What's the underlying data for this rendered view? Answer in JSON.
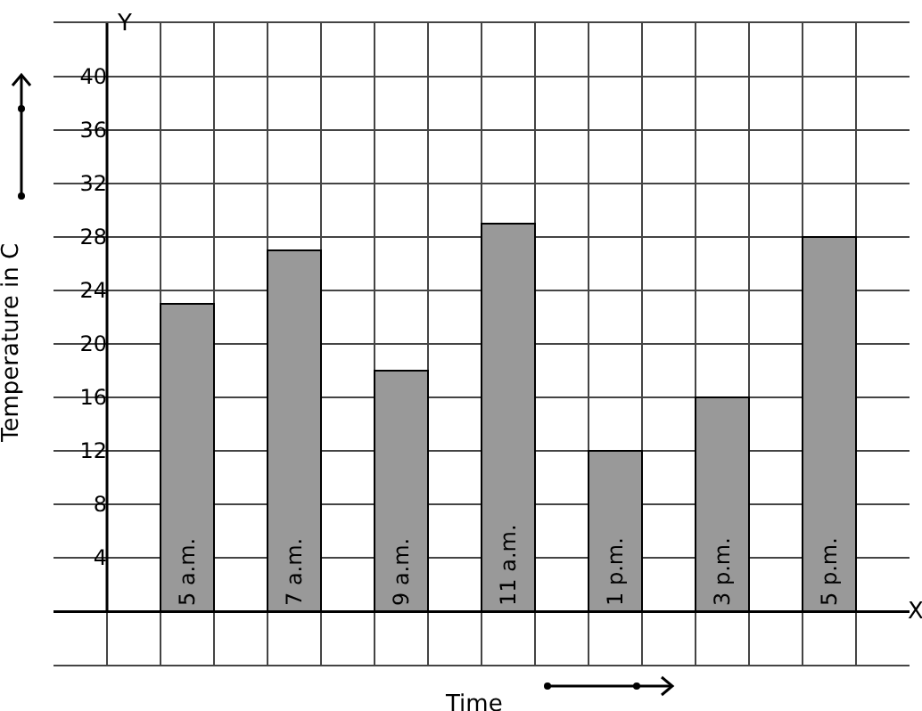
{
  "chart_data": {
    "type": "bar",
    "xlabel": "Time",
    "ylabel": "Temperature in C",
    "categories": [
      "5 a.m.",
      "7 a.m.",
      "9 a.m.",
      "11 a.m.",
      "1 p.m.",
      "3 p.m.",
      "5 p.m."
    ],
    "values": [
      23,
      27,
      18,
      29,
      12,
      16,
      28
    ],
    "color": "#999999",
    "ylim": [
      -4,
      44
    ],
    "yticks": [
      {
        "value": -4,
        "label": null
      },
      {
        "value": 0,
        "label": null
      },
      4,
      8,
      12,
      16,
      20,
      24,
      28,
      32,
      36,
      40,
      {
        "value": 44,
        "label": null
      }
    ],
    "grid": true,
    "annotations": [
      "X",
      "Y"
    ]
  }
}
